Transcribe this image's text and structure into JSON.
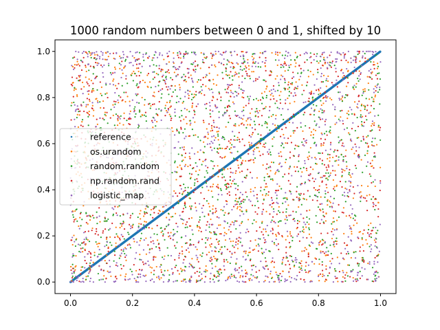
{
  "chart_data": {
    "type": "scatter",
    "title": "1000 random numbers between 0 and 1, shifted by 10",
    "xlabel": "",
    "ylabel": "",
    "xlim": [
      -0.05,
      1.05
    ],
    "ylim": [
      -0.05,
      1.05
    ],
    "xticks": [
      "0.0",
      "0.2",
      "0.4",
      "0.6",
      "0.8",
      "1.0"
    ],
    "yticks": [
      "0.0",
      "0.2",
      "0.4",
      "0.6",
      "0.8",
      "1.0"
    ],
    "grid": false,
    "legend_placement": "center-left",
    "n_points_per_series": 1000,
    "series": [
      {
        "name": "reference",
        "color": "#1f77b4",
        "kind": "diagonal y=x, x=(i+shift)/1000 mod 1"
      },
      {
        "name": "os.urandom",
        "color": "#ff7f0e",
        "kind": "uniform random"
      },
      {
        "name": "random.random",
        "color": "#2ca02c",
        "kind": "uniform random"
      },
      {
        "name": "np.random.rand",
        "color": "#d62728",
        "kind": "uniform random"
      },
      {
        "name": "logistic_map",
        "color": "#9467bd",
        "kind": "logistic map x(n+1)=4x(n)(1-x(n)), clusters near 0 and 1"
      }
    ]
  }
}
